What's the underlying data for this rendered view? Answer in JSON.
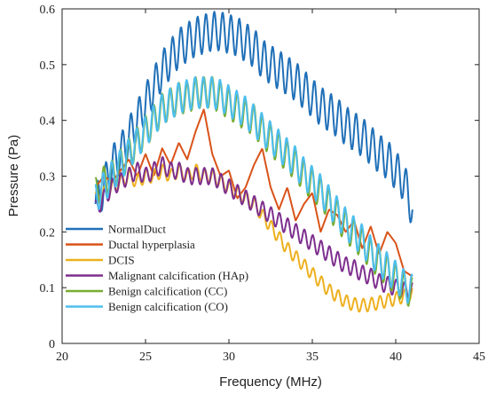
{
  "chart_data": {
    "type": "line",
    "xlabel": "Frequency (MHz)",
    "ylabel": "Pressure (Pa)",
    "xlim": [
      20,
      45
    ],
    "ylim": [
      0,
      0.6
    ],
    "xticks": [
      20,
      25,
      30,
      35,
      40,
      45
    ],
    "yticks": [
      0,
      0.1,
      0.2,
      0.3,
      0.4,
      0.5,
      0.6
    ],
    "x_tick_labels": [
      "20",
      "25",
      "30",
      "35",
      "40",
      "45"
    ],
    "y_tick_labels": [
      "0",
      "0.1",
      "0.2",
      "0.3",
      "0.4",
      "0.5",
      "0.6"
    ],
    "grid": false,
    "legend_position": "bottom-left",
    "series": [
      {
        "name": "NormalDuct",
        "color": "#2070b8",
        "x": [
          22,
          22.5,
          23,
          23.5,
          24,
          24.5,
          25,
          25.5,
          26,
          26.5,
          27,
          27.5,
          28,
          28.5,
          29,
          29.5,
          30,
          30.5,
          31,
          31.5,
          32,
          32.5,
          33,
          33.5,
          34,
          34.5,
          35,
          35.5,
          36,
          36.5,
          37,
          37.5,
          38,
          38.5,
          39,
          39.5,
          40,
          40.5,
          41
        ],
        "y": [
          0.25,
          0.28,
          0.32,
          0.34,
          0.37,
          0.4,
          0.43,
          0.46,
          0.49,
          0.51,
          0.53,
          0.54,
          0.55,
          0.555,
          0.56,
          0.56,
          0.555,
          0.55,
          0.54,
          0.53,
          0.51,
          0.5,
          0.49,
          0.48,
          0.47,
          0.455,
          0.44,
          0.425,
          0.415,
          0.405,
          0.39,
          0.38,
          0.37,
          0.355,
          0.34,
          0.33,
          0.31,
          0.29,
          0.24
        ],
        "osc_amp": 0.035
      },
      {
        "name": "Ductal hyperplasia",
        "color": "#d95319",
        "x": [
          22,
          22.5,
          23,
          23.5,
          24,
          24.5,
          25,
          25.5,
          26,
          26.5,
          27,
          27.5,
          28,
          28.5,
          29,
          29.5,
          30,
          30.5,
          31,
          31.5,
          32,
          32.5,
          33,
          33.5,
          34,
          34.5,
          35,
          35.5,
          36,
          36.5,
          37,
          37.5,
          38,
          38.5,
          39,
          39.5,
          40,
          40.5,
          41
        ],
        "y": [
          0.28,
          0.3,
          0.29,
          0.31,
          0.33,
          0.3,
          0.34,
          0.3,
          0.35,
          0.32,
          0.36,
          0.33,
          0.38,
          0.42,
          0.34,
          0.3,
          0.31,
          0.26,
          0.28,
          0.32,
          0.35,
          0.28,
          0.24,
          0.28,
          0.22,
          0.25,
          0.27,
          0.2,
          0.24,
          0.23,
          0.2,
          0.22,
          0.17,
          0.21,
          0.16,
          0.2,
          0.18,
          0.13,
          0.12
        ],
        "osc_amp": 0
      },
      {
        "name": "DCIS",
        "color": "#edb120",
        "x": [
          22,
          22.5,
          23,
          23.5,
          24,
          24.5,
          25,
          25.5,
          26,
          26.5,
          27,
          27.5,
          28,
          28.5,
          29,
          29.5,
          30,
          30.5,
          31,
          31.5,
          32,
          32.5,
          33,
          33.5,
          34,
          34.5,
          35,
          35.5,
          36,
          36.5,
          37,
          37.5,
          38,
          38.5,
          39,
          39.5,
          40,
          40.5,
          41
        ],
        "y": [
          0.26,
          0.27,
          0.28,
          0.29,
          0.3,
          0.29,
          0.3,
          0.3,
          0.31,
          0.3,
          0.31,
          0.3,
          0.31,
          0.3,
          0.3,
          0.29,
          0.28,
          0.27,
          0.26,
          0.25,
          0.23,
          0.21,
          0.19,
          0.17,
          0.155,
          0.14,
          0.125,
          0.11,
          0.095,
          0.085,
          0.075,
          0.07,
          0.068,
          0.07,
          0.073,
          0.077,
          0.08,
          0.085,
          0.09
        ],
        "osc_amp": 0.012
      },
      {
        "name": "Malignant calcification (HAp)",
        "color": "#7e2f8e",
        "x": [
          22,
          22.5,
          23,
          23.5,
          24,
          24.5,
          25,
          25.5,
          26,
          26.5,
          27,
          27.5,
          28,
          28.5,
          29,
          29.5,
          30,
          30.5,
          31,
          31.5,
          32,
          32.5,
          33,
          33.5,
          34,
          34.5,
          35,
          35.5,
          36,
          36.5,
          37,
          37.5,
          38,
          38.5,
          39,
          39.5,
          40,
          40.5,
          41
        ],
        "y": [
          0.24,
          0.26,
          0.28,
          0.29,
          0.3,
          0.31,
          0.3,
          0.31,
          0.32,
          0.31,
          0.31,
          0.3,
          0.3,
          0.3,
          0.3,
          0.29,
          0.28,
          0.27,
          0.26,
          0.25,
          0.24,
          0.23,
          0.22,
          0.21,
          0.2,
          0.19,
          0.18,
          0.17,
          0.16,
          0.15,
          0.14,
          0.135,
          0.125,
          0.12,
          0.11,
          0.105,
          0.1,
          0.095,
          0.095
        ],
        "osc_amp": 0.015
      },
      {
        "name": "Benign calcification (CC)",
        "color": "#77ac30",
        "x": [
          22,
          22.5,
          23,
          23.5,
          24,
          24.5,
          25,
          25.5,
          26,
          26.5,
          27,
          27.5,
          28,
          28.5,
          29,
          29.5,
          30,
          30.5,
          31,
          31.5,
          32,
          32.5,
          33,
          33.5,
          34,
          34.5,
          35,
          35.5,
          36,
          36.5,
          37,
          37.5,
          38,
          38.5,
          39,
          39.5,
          40,
          40.5,
          41
        ],
        "y": [
          0.27,
          0.29,
          0.3,
          0.32,
          0.34,
          0.36,
          0.38,
          0.4,
          0.42,
          0.43,
          0.44,
          0.44,
          0.45,
          0.45,
          0.45,
          0.44,
          0.43,
          0.42,
          0.41,
          0.4,
          0.38,
          0.365,
          0.35,
          0.335,
          0.32,
          0.3,
          0.285,
          0.27,
          0.25,
          0.23,
          0.21,
          0.195,
          0.18,
          0.16,
          0.145,
          0.13,
          0.115,
          0.1,
          0.09
        ],
        "osc_amp": 0.028
      },
      {
        "name": "Benign calcification (CO)",
        "color": "#4dbeee",
        "x": [
          22,
          22.5,
          23,
          23.5,
          24,
          24.5,
          25,
          25.5,
          26,
          26.5,
          27,
          27.5,
          28,
          28.5,
          29,
          29.5,
          30,
          30.5,
          31,
          31.5,
          32,
          32.5,
          33,
          33.5,
          34,
          34.5,
          35,
          35.5,
          36,
          36.5,
          37,
          37.5,
          38,
          38.5,
          39,
          39.5,
          40,
          40.5,
          41
        ],
        "y": [
          0.26,
          0.28,
          0.3,
          0.32,
          0.34,
          0.36,
          0.38,
          0.4,
          0.42,
          0.43,
          0.44,
          0.445,
          0.45,
          0.45,
          0.45,
          0.445,
          0.435,
          0.425,
          0.415,
          0.4,
          0.385,
          0.37,
          0.355,
          0.34,
          0.325,
          0.305,
          0.29,
          0.275,
          0.255,
          0.235,
          0.215,
          0.2,
          0.185,
          0.165,
          0.15,
          0.135,
          0.12,
          0.105,
          0.095
        ],
        "osc_amp": 0.028
      }
    ]
  }
}
